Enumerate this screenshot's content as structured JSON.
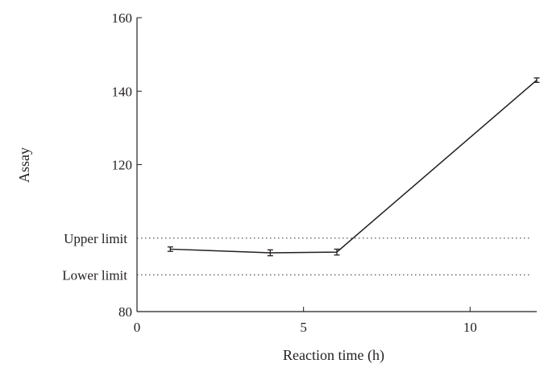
{
  "chart_data": {
    "type": "line",
    "title": "",
    "xlabel": "Reaction time (h)",
    "ylabel": "Assay",
    "xlim": [
      0,
      12
    ],
    "ylim": [
      80,
      160
    ],
    "xticks": [
      0,
      5,
      10
    ],
    "yticks": [
      80,
      120,
      140,
      160
    ],
    "grid": false,
    "legend": "none",
    "series": [
      {
        "x": [
          1,
          4,
          6,
          12
        ],
        "y": [
          97,
          96,
          96.2,
          143
        ],
        "error": [
          0.6,
          0.8,
          0.8,
          0.6
        ],
        "color": "#231f20"
      }
    ],
    "reference_lines": [
      {
        "label": "Upper limit",
        "y": 100,
        "style": "dotted"
      },
      {
        "label": "Lower limit",
        "y": 90,
        "style": "dotted"
      }
    ]
  }
}
